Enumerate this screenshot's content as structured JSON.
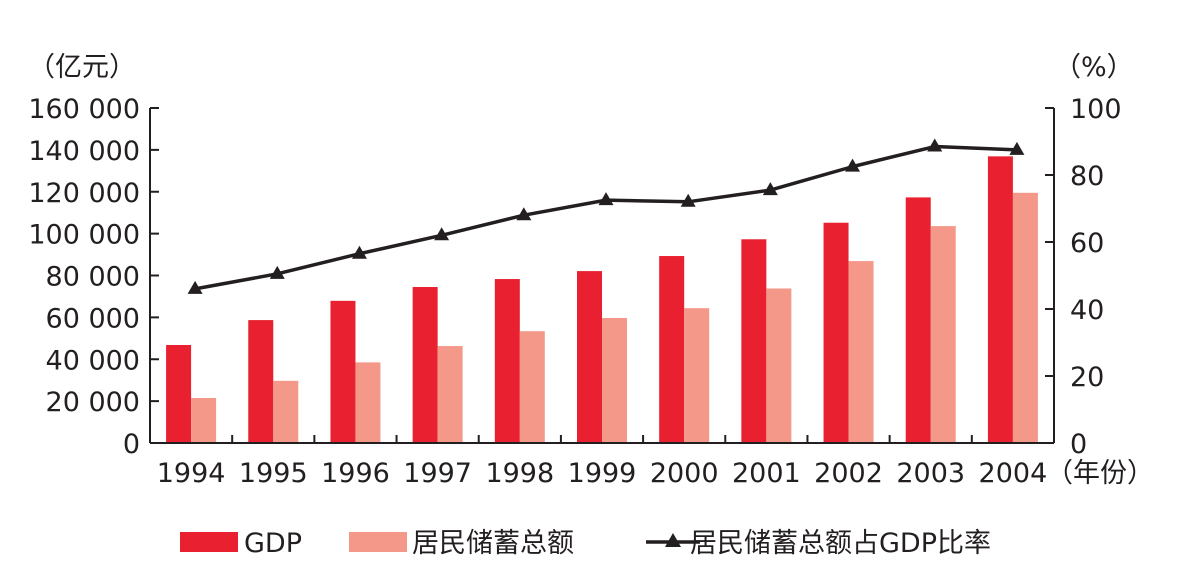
{
  "chart_data": {
    "type": "bar",
    "categories": [
      "1994",
      "1995",
      "1996",
      "1997",
      "1998",
      "1999",
      "2000",
      "2001",
      "2002",
      "2003",
      "2004"
    ],
    "x_unit": "（年份）",
    "y_left": {
      "unit": "（亿元）",
      "ylim": [
        0,
        160000
      ],
      "ticks": [
        0,
        20000,
        40000,
        60000,
        80000,
        100000,
        120000,
        140000,
        160000
      ],
      "tick_labels": [
        "0",
        "20 000",
        "40 000",
        "60 000",
        "80 000",
        "100 000",
        "120 000",
        "140 000",
        "160 000"
      ]
    },
    "y_right": {
      "unit": "（%）",
      "ylim": [
        0,
        100
      ],
      "ticks": [
        0,
        20,
        40,
        60,
        80,
        100
      ],
      "tick_labels": [
        "0",
        "20",
        "40",
        "60",
        "80",
        "100"
      ]
    },
    "series": [
      {
        "name": "GDP",
        "kind": "bar",
        "axis": "left",
        "color": "#e8202f",
        "values": [
          46800,
          58700,
          67900,
          74500,
          78300,
          82100,
          89300,
          97300,
          105200,
          117300,
          136900
        ]
      },
      {
        "name": "居民储蓄总额",
        "kind": "bar",
        "axis": "left",
        "color": "#f4998a",
        "values": [
          21500,
          29700,
          38500,
          46300,
          53400,
          59700,
          64400,
          73800,
          86900,
          103600,
          119500
        ]
      },
      {
        "name": "居民储蓄总额占GDP比率",
        "kind": "line",
        "axis": "right",
        "color": "#231f20",
        "marker": "triangle",
        "values": [
          46,
          50.5,
          56.5,
          62,
          68,
          72.5,
          72,
          75.5,
          82.5,
          88.5,
          87.5
        ]
      }
    ],
    "legend": {
      "placement": "bottom",
      "items": [
        "GDP",
        "居民储蓄总额",
        "居民储蓄总额占GDP比率"
      ]
    },
    "grid": false
  }
}
